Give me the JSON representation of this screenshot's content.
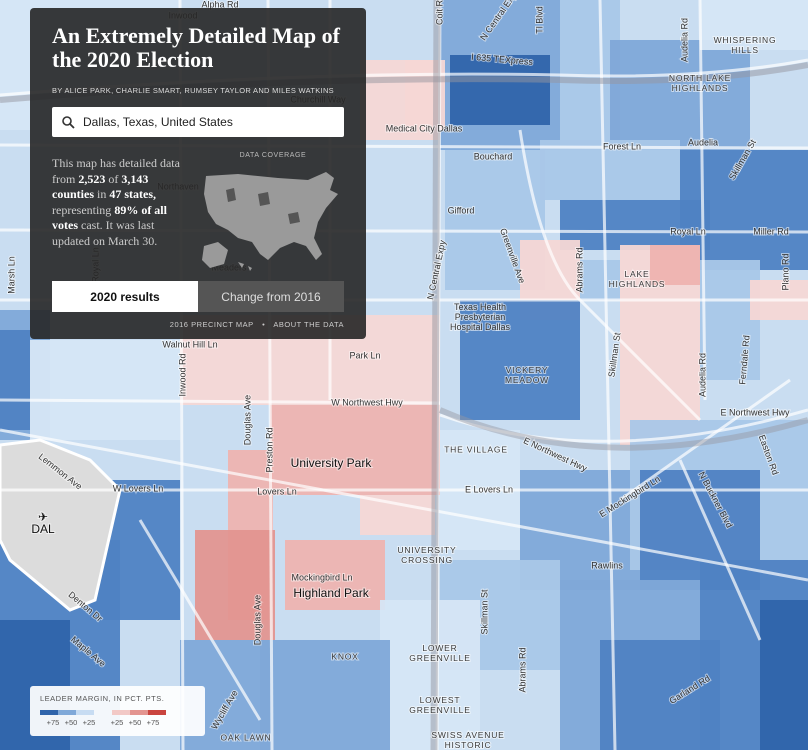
{
  "panel": {
    "title": "An Extremely Detailed Map of the 2020 Election",
    "byline": "BY ALICE PARK, CHARLIE SMART, RUMSEY TAYLOR AND MILES WATKINS",
    "search": "Dallas, Texas, United States",
    "description": [
      {
        "text": "This map has detailed data from ",
        "bold": false
      },
      {
        "text": "2,523",
        "bold": true
      },
      {
        "text": " of ",
        "bold": false
      },
      {
        "text": "3,143 counties",
        "bold": true
      },
      {
        "text": " in ",
        "bold": false
      },
      {
        "text": "47 states,",
        "bold": true
      },
      {
        "text": " representing ",
        "bold": false
      },
      {
        "text": "89% of all votes",
        "bold": true
      },
      {
        "text": " cast. It was last updated on March 30.",
        "bold": false
      }
    ],
    "coverage_label": "DATA COVERAGE",
    "tabs": [
      "2020 results",
      "Change from 2016"
    ],
    "links": [
      "2016 PRECINCT MAP",
      "ABOUT THE DATA"
    ]
  },
  "legend": {
    "title": "LEADER MARGIN, IN PCT. PTS.",
    "labels": [
      "+75",
      "+50",
      "+25",
      "+25",
      "+50",
      "+75"
    ],
    "colors": [
      "#2f64ab",
      "#7fa8d8",
      "#c7dcf2",
      "#f2c9c6",
      "#e39590",
      "#c9453f"
    ]
  },
  "map_labels": [
    "Alpha Rd",
    "Inwood",
    "Coit Rd",
    "N Central Expy",
    "Tl Blvd",
    "Audelia Rd",
    "WHISPERING HILLS",
    "I 635 TEXpress",
    "NORTH LAKE HIGHLANDS",
    "Churchill Way",
    "Medical City Dallas",
    "Forest Ln",
    "Audelia",
    "Bouchard",
    "Skillman St",
    "Gifford",
    "Royal Ln",
    "Miller Rd",
    "Marsh Ln",
    "N Central Expy",
    "Greenville Ave",
    "Abrams Rd",
    "LAKE HIGHLANDS",
    "Plano Rd",
    "Texas Health Presbyterian Hospital Dallas",
    "Skillman St",
    "Audelia Rd",
    "Ferndale Rd",
    "VICKERY MEADOW",
    "Park Ln",
    "Inwood Rd",
    "Walnut Hill Ln",
    "W Northwest Hwy",
    "E Northwest Hwy",
    "Douglas Ave",
    "Preston Rd",
    "THE VILLAGE",
    "E Northwest Hwy",
    "Easton Rd",
    "Lemmon Ave",
    "University Park",
    "W Lovers Ln",
    "Lovers Ln",
    "E Lovers Ln",
    "E Mockingbird Ln",
    "N Buckner Blvd",
    "DAL",
    "UNIVERSITY CROSSING",
    "Rawlins",
    "Mockingbird Ln",
    "Highland Park",
    "Denton Dr",
    "Douglas Ave",
    "Skillman St",
    "Maple Ave",
    "LOWER GREENVILLE",
    "KNOX",
    "Abrams Rd",
    "LOWEST GREENVILLE",
    "Garland Rd",
    "Wycliff Ave",
    "OAK LAWN",
    "SWISS AVENUE HISTORIC",
    "Northaven",
    "Meaders",
    "Royal Ln"
  ]
}
